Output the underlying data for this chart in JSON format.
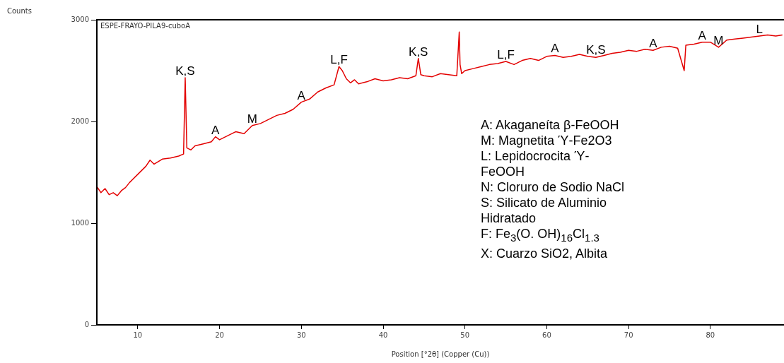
{
  "chart_data": {
    "type": "line",
    "xlabel": "Position [°2θ] (Copper (Cu))",
    "x": [
      5,
      5.5,
      6,
      6.5,
      7,
      7.5,
      8,
      8.5,
      9,
      10,
      11,
      11.5,
      12,
      13,
      14,
      15,
      15.6,
      15.8,
      16,
      16.5,
      17,
      18,
      19,
      19.5,
      20,
      21,
      22,
      23,
      24,
      25,
      26,
      27,
      28,
      29,
      30,
      31,
      32,
      33,
      34,
      34.6,
      35,
      35.5,
      36,
      36.5,
      37,
      38,
      39,
      40,
      41,
      42,
      43,
      44,
      44.3,
      44.6,
      45,
      46,
      47,
      48,
      49,
      49.3,
      49.4,
      49.6,
      50,
      51,
      52,
      53,
      54,
      55,
      56,
      57,
      58,
      59,
      60,
      61,
      62,
      63,
      64,
      65,
      66,
      67,
      68,
      69,
      70,
      71,
      72,
      73,
      74,
      75,
      76,
      76.8,
      77,
      78,
      79,
      80,
      81,
      82,
      83,
      84,
      85,
      86,
      87,
      88,
      88.8
    ],
    "series": [
      {
        "color": "#e30000",
        "values": [
          1360,
          1300,
          1340,
          1280,
          1300,
          1270,
          1320,
          1350,
          1400,
          1480,
          1560,
          1620,
          1580,
          1630,
          1640,
          1660,
          1680,
          2430,
          1740,
          1720,
          1760,
          1780,
          1800,
          1850,
          1820,
          1860,
          1900,
          1880,
          1960,
          1980,
          2020,
          2060,
          2080,
          2120,
          2190,
          2220,
          2290,
          2330,
          2360,
          2540,
          2500,
          2420,
          2380,
          2410,
          2370,
          2390,
          2420,
          2400,
          2410,
          2430,
          2420,
          2450,
          2620,
          2460,
          2450,
          2440,
          2470,
          2460,
          2450,
          2880,
          2560,
          2470,
          2500,
          2520,
          2540,
          2560,
          2570,
          2590,
          2560,
          2600,
          2620,
          2600,
          2640,
          2650,
          2630,
          2640,
          2660,
          2640,
          2630,
          2650,
          2670,
          2680,
          2700,
          2690,
          2710,
          2700,
          2730,
          2740,
          2720,
          2500,
          2750,
          2760,
          2780,
          2780,
          2730,
          2800,
          2810,
          2820,
          2830,
          2840,
          2850,
          2840,
          2850
        ]
      }
    ],
    "xlim": [
      5,
      89
    ],
    "ylim": [
      0,
      3000
    ],
    "xticks": [
      10,
      20,
      30,
      40,
      50,
      60,
      70,
      80
    ],
    "yticks": [
      0,
      1000,
      2000,
      3000
    ],
    "grid": false,
    "legend": false,
    "marker": "none",
    "line_style": "solid",
    "annotations": [
      "Counts",
      "ESPE-FRAYO-PILA9-cuboA",
      {
        "text": "K,S",
        "x": 15.8,
        "y": 2430
      },
      {
        "text": "A",
        "x": 19.5,
        "y": 1850
      },
      {
        "text": "M",
        "x": 24,
        "y": 1960
      },
      {
        "text": "A",
        "x": 30,
        "y": 2190
      },
      {
        "text": "L,F",
        "x": 34.6,
        "y": 2540
      },
      {
        "text": "K,S",
        "x": 44.3,
        "y": 2620
      },
      {
        "text": "L,F",
        "x": 55,
        "y": 2590
      },
      {
        "text": "A",
        "x": 61,
        "y": 2650
      },
      {
        "text": "K,S",
        "x": 66,
        "y": 2640
      },
      {
        "text": "A",
        "x": 73,
        "y": 2700
      },
      {
        "text": "A",
        "x": 79,
        "y": 2780
      },
      {
        "text": "M",
        "x": 81,
        "y": 2730
      },
      {
        "text": "L",
        "x": 86,
        "y": 2840
      },
      "A: Akaganeíta β-FeOOH\nM: Magnetita Ύ-Fe2O3\nL: Lepidocrocita Ύ-\nFeOOH\nN: Cloruro de Sodio NaCl\nS: Silicato de Aluminio\nHidratado\nF: Fe$_{3}$(O. OH)$_{16}$Cl$_{1.3}$\nX: Cuarzo SiO2, Albita"
    ]
  }
}
